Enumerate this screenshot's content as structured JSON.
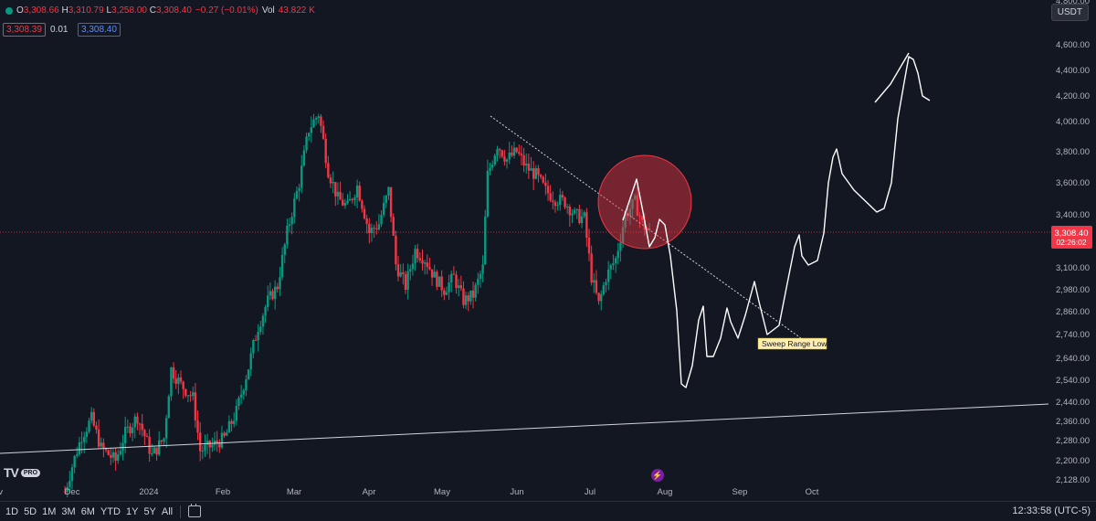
{
  "header": {
    "ohlc": [
      {
        "key": "O",
        "value": "3,308.66"
      },
      {
        "key": "H",
        "value": "3,310.79"
      },
      {
        "key": "L",
        "value": "3,258.00"
      },
      {
        "key": "C",
        "value": "3,308.40"
      }
    ],
    "change": "−0.27 (−0.01%)",
    "vol_label": "Vol",
    "vol_value": "43.822 K",
    "bid": "3,308.39",
    "spread": "0.01",
    "ask": "3,308.40",
    "currency": "USDT"
  },
  "chart_data": {
    "type": "candlestick",
    "x_ticks": [
      "ov",
      "Dec",
      "2024",
      "Feb",
      "Mar",
      "Apr",
      "May",
      "Jun",
      "Jul",
      "Aug",
      "Sep",
      "Oct"
    ],
    "y_ticks": [
      4600,
      4400,
      4200,
      4000,
      3800,
      3600,
      3400,
      3100,
      2980,
      2860,
      2740,
      2640,
      2540,
      2440,
      2360,
      2280,
      2200,
      2128
    ],
    "y_tick_labels": [
      "4,600.00",
      "4,400.00",
      "4,200.00",
      "4,000.00",
      "3,800.00",
      "3,600.00",
      "3,400.00",
      "3,100.00",
      "2,980.00",
      "2,860.00",
      "2,740.00",
      "2,640.00",
      "2,540.00",
      "2,440.00",
      "2,360.00",
      "2,280.00",
      "2,200.00",
      "2,128.00"
    ],
    "top_tick_partial": "4,800.00",
    "last_price": "3,308.40",
    "countdown": "02:26:02",
    "annotation": "Sweep Range Lows",
    "colors": {
      "up": "#089981",
      "down": "#f23645",
      "bg": "#131722",
      "circle": "#f23645"
    },
    "price_path": [
      {
        "t": "Nov 28",
        "p": 2080
      },
      {
        "t": "Dec 01",
        "p": 2180
      },
      {
        "t": "Dec 05",
        "p": 2300
      },
      {
        "t": "Dec 09",
        "p": 2370
      },
      {
        "t": "Dec 13",
        "p": 2250
      },
      {
        "t": "Dec 19",
        "p": 2200
      },
      {
        "t": "Dec 23",
        "p": 2310
      },
      {
        "t": "Dec 28",
        "p": 2380
      },
      {
        "t": "Jan 03",
        "p": 2220
      },
      {
        "t": "Jan 08",
        "p": 2290
      },
      {
        "t": "Jan 11",
        "p": 2590
      },
      {
        "t": "Jan 15",
        "p": 2520
      },
      {
        "t": "Jan 20",
        "p": 2460
      },
      {
        "t": "Jan 23",
        "p": 2240
      },
      {
        "t": "Jan 28",
        "p": 2260
      },
      {
        "t": "Feb 02",
        "p": 2290
      },
      {
        "t": "Feb 07",
        "p": 2400
      },
      {
        "t": "Feb 12",
        "p": 2600
      },
      {
        "t": "Feb 16",
        "p": 2780
      },
      {
        "t": "Feb 20",
        "p": 2920
      },
      {
        "t": "Feb 24",
        "p": 3000
      },
      {
        "t": "Feb 28",
        "p": 3300
      },
      {
        "t": "Mar 04",
        "p": 3600
      },
      {
        "t": "Mar 08",
        "p": 3950
      },
      {
        "t": "Mar 12",
        "p": 4060
      },
      {
        "t": "Mar 16",
        "p": 3680
      },
      {
        "t": "Mar 20",
        "p": 3500
      },
      {
        "t": "Mar 24",
        "p": 3450
      },
      {
        "t": "Mar 28",
        "p": 3580
      },
      {
        "t": "Apr 02",
        "p": 3300
      },
      {
        "t": "Apr 06",
        "p": 3350
      },
      {
        "t": "Apr 10",
        "p": 3550
      },
      {
        "t": "Apr 13",
        "p": 3120
      },
      {
        "t": "Apr 17",
        "p": 3000
      },
      {
        "t": "Apr 21",
        "p": 3200
      },
      {
        "t": "Apr 25",
        "p": 3150
      },
      {
        "t": "Apr 29",
        "p": 3050
      },
      {
        "t": "May 03",
        "p": 2980
      },
      {
        "t": "May 07",
        "p": 3050
      },
      {
        "t": "May 11",
        "p": 2920
      },
      {
        "t": "May 15",
        "p": 2950
      },
      {
        "t": "May 19",
        "p": 3100
      },
      {
        "t": "May 21",
        "p": 3650
      },
      {
        "t": "May 25",
        "p": 3850
      },
      {
        "t": "May 29",
        "p": 3750
      },
      {
        "t": "Jun 02",
        "p": 3800
      },
      {
        "t": "Jun 06",
        "p": 3700
      },
      {
        "t": "Jun 10",
        "p": 3650
      },
      {
        "t": "Jun 14",
        "p": 3550
      },
      {
        "t": "Jun 18",
        "p": 3500
      },
      {
        "t": "Jun 22",
        "p": 3480
      },
      {
        "t": "Jun 26",
        "p": 3400
      },
      {
        "t": "Jun 30",
        "p": 3380
      },
      {
        "t": "Jul 03",
        "p": 3050
      },
      {
        "t": "Jul 06",
        "p": 2900
      },
      {
        "t": "Jul 09",
        "p": 3050
      },
      {
        "t": "Jul 13",
        "p": 3150
      },
      {
        "t": "Jul 17",
        "p": 3400
      },
      {
        "t": "Jul 21",
        "p": 3480
      },
      {
        "t": "Jul 24",
        "p": 3350
      },
      {
        "t": "Jul 27",
        "p": 3300
      }
    ]
  },
  "toolbar": {
    "timeframes": [
      "1D",
      "5D",
      "1M",
      "3M",
      "6M",
      "YTD",
      "1Y",
      "5Y",
      "All"
    ],
    "clock": "12:33:58 (UTC-5)"
  },
  "branding": {
    "logo_text": "TV",
    "logo_badge": "PRO"
  }
}
